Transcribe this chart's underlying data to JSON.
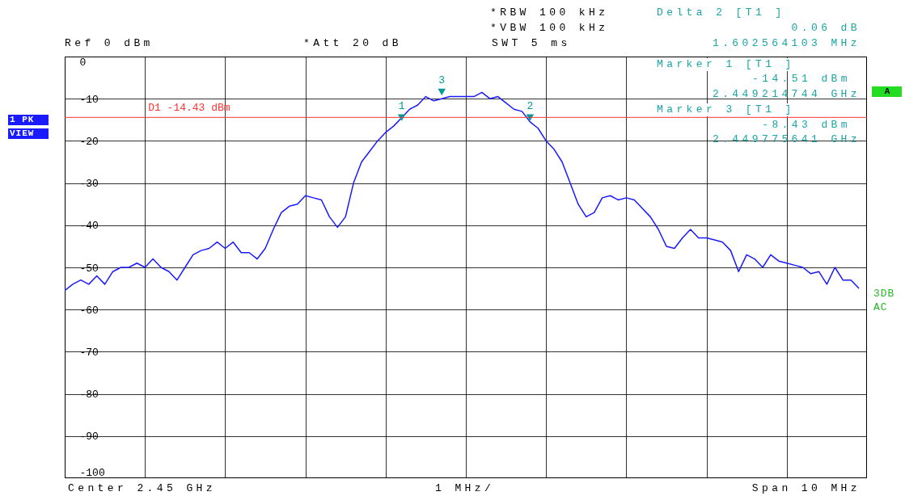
{
  "chart_data": {
    "type": "line",
    "categories": [
      null,
      null,
      null,
      null,
      null,
      null,
      null,
      null,
      null,
      null,
      null,
      null,
      null,
      null,
      null,
      null,
      null,
      null,
      null,
      null,
      null,
      null,
      null,
      null,
      null,
      null,
      null,
      null,
      null,
      null,
      null,
      null,
      null,
      null,
      null,
      null,
      null,
      null,
      null,
      null,
      null,
      null,
      null,
      null,
      null,
      null,
      null,
      null,
      null,
      null,
      null,
      null,
      null,
      null,
      null,
      null,
      null,
      null,
      null,
      null,
      null,
      null,
      null,
      null,
      null,
      null,
      null,
      null,
      null,
      null,
      null,
      null,
      null,
      null,
      null,
      null,
      null,
      null,
      null,
      null,
      null,
      null,
      null,
      null,
      null,
      null,
      null,
      null,
      null,
      null,
      null,
      null,
      null,
      null,
      null,
      null,
      null,
      null,
      null,
      null
    ],
    "series": [
      {
        "color": "#1a1aff",
        "values": [
          -55.5,
          -54,
          -53,
          -54,
          -52,
          -54,
          -51,
          -50,
          -50,
          -49,
          -50,
          -48,
          -50,
          -51,
          -53,
          -50,
          -47,
          -46,
          -45.5,
          -44,
          -45.5,
          -44,
          -46.5,
          -46.5,
          -48,
          -45.5,
          -41,
          -37,
          -35.5,
          -35,
          -33,
          -33.5,
          -34,
          -38,
          -40.5,
          -38,
          -30,
          -25,
          -22.5,
          -20,
          -18,
          -16.5,
          -14.5,
          -12.5,
          -11.5,
          -9.5,
          -10.5,
          -10,
          -9.5,
          -9.5,
          -9.5,
          -9.5,
          -8.5,
          -10,
          -9.5,
          -11,
          -12.5,
          -13,
          -15.5,
          -17,
          -20,
          -22,
          -25,
          -30,
          -35,
          -38,
          -37,
          -33.5,
          -33,
          -34,
          -33.5,
          -34,
          -36,
          -38,
          -41,
          -45,
          -45.5,
          -43,
          -41,
          -43,
          -43,
          -43.5,
          -44,
          -46,
          -51,
          -47,
          -48,
          -50,
          -47,
          -48.5,
          -49,
          -49.5,
          -50,
          -51.5,
          -51,
          -54,
          -50,
          -53,
          -53,
          -55
        ]
      },
      {
        "type": "scatter",
        "marker": "triangle",
        "color": "#009999",
        "values": [
          null,
          null,
          null,
          null,
          null,
          null,
          null,
          null,
          null,
          null,
          null,
          null,
          null,
          null,
          null,
          null,
          null,
          null,
          null,
          null,
          null,
          null,
          null,
          null,
          null,
          null,
          null,
          null,
          null,
          null,
          null,
          null,
          null,
          null,
          null,
          null,
          null,
          null,
          null,
          null,
          null,
          null,
          -14.5,
          null,
          null,
          null,
          null,
          -8.4,
          null,
          null,
          null,
          null,
          null,
          null,
          null,
          null,
          null,
          null,
          -14.5,
          null,
          null,
          null,
          null,
          null,
          null,
          null,
          null,
          null,
          null,
          null,
          null,
          null,
          null,
          null,
          null,
          null,
          null,
          null,
          null,
          null,
          null,
          null,
          null,
          null,
          null,
          null,
          null,
          null,
          null,
          null,
          null,
          null,
          null,
          null,
          null,
          null,
          null,
          null,
          null,
          null
        ]
      }
    ],
    "ylim": [
      -100,
      0
    ],
    "yticks": [
      0,
      -10,
      -20,
      -30,
      -40,
      -50,
      -60,
      -70,
      -80,
      -90,
      -100
    ],
    "grid": true,
    "ref_lines": [
      {
        "axis": "y",
        "value": -14.43,
        "label": "D1 -14.43 dBm",
        "color": "#ff3333"
      }
    ],
    "annotations": [
      "*RBW 100 kHz",
      "*VBW 100 kHz",
      "SWT 5 ms",
      "Ref 0 dBm",
      "*Att 20 dB",
      "Delta 2 [T1 ]",
      "0.06 dB",
      "1.602564103 MHz",
      "Marker 1 [T1 ]",
      "-14.51 dBm",
      "2.449214744 GHz",
      "Marker 3 [T1 ]",
      "-8.43 dBm",
      "2.449775641 GHz",
      "1 PK",
      "VIEW",
      "A",
      "3DB",
      "AC",
      "Center 2.45 GHz",
      "1 MHz/",
      "Span 10 MHz",
      "1",
      "3",
      "2"
    ]
  }
}
